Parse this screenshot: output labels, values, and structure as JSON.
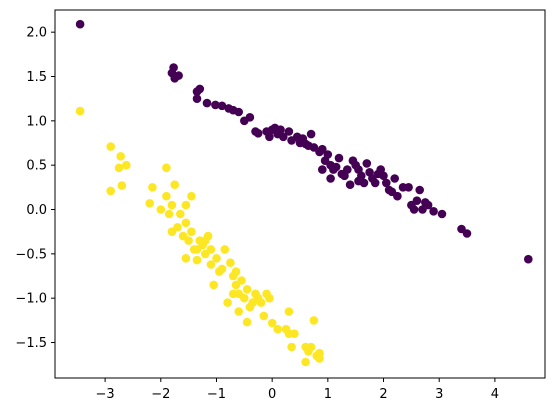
{
  "chart_data": {
    "type": "scatter",
    "title": "",
    "xlabel": "",
    "ylabel": "",
    "xlim": [
      -3.9,
      4.9
    ],
    "ylim": [
      -1.9,
      2.25
    ],
    "grid": false,
    "xticks": [
      -3,
      -2,
      -1,
      0,
      1,
      2,
      3,
      4
    ],
    "yticks": [
      -1.5,
      -1.0,
      -0.5,
      0.0,
      0.5,
      1.0,
      1.5,
      2.0
    ],
    "xtick_labels": [
      "−3",
      "−2",
      "−1",
      "0",
      "1",
      "2",
      "3",
      "4"
    ],
    "ytick_labels": [
      "−1.5",
      "−1.0",
      "−0.5",
      "0.0",
      "0.5",
      "1.0",
      "1.5",
      "2.0"
    ],
    "series": [
      {
        "color": "#440154",
        "points": [
          [
            -3.45,
            2.09
          ],
          [
            -1.8,
            1.54
          ],
          [
            -1.77,
            1.6
          ],
          [
            -1.68,
            1.51
          ],
          [
            -1.75,
            1.48
          ],
          [
            -1.35,
            1.33
          ],
          [
            -1.3,
            1.36
          ],
          [
            -1.35,
            1.25
          ],
          [
            -1.17,
            1.2
          ],
          [
            -1.02,
            1.18
          ],
          [
            -0.9,
            1.17
          ],
          [
            -0.78,
            1.14
          ],
          [
            -0.7,
            1.12
          ],
          [
            -0.6,
            1.1
          ],
          [
            -0.5,
            1.0
          ],
          [
            -0.4,
            1.04
          ],
          [
            -0.3,
            0.88
          ],
          [
            -0.25,
            0.86
          ],
          [
            -0.1,
            0.88
          ],
          [
            0.0,
            0.9
          ],
          [
            0.05,
            0.92
          ],
          [
            0.1,
            0.85
          ],
          [
            0.15,
            0.9
          ],
          [
            0.2,
            0.82
          ],
          [
            0.3,
            0.88
          ],
          [
            0.45,
            0.82
          ],
          [
            0.5,
            0.75
          ],
          [
            0.55,
            0.8
          ],
          [
            0.6,
            0.74
          ],
          [
            0.7,
            0.85
          ],
          [
            0.75,
            0.7
          ],
          [
            0.85,
            0.65
          ],
          [
            0.9,
            0.68
          ],
          [
            0.95,
            0.55
          ],
          [
            1.0,
            0.62
          ],
          [
            1.05,
            0.5
          ],
          [
            1.1,
            0.45
          ],
          [
            1.15,
            0.48
          ],
          [
            1.2,
            0.58
          ],
          [
            1.3,
            0.38
          ],
          [
            1.35,
            0.45
          ],
          [
            1.45,
            0.55
          ],
          [
            1.5,
            0.5
          ],
          [
            1.55,
            0.32
          ],
          [
            1.55,
            0.45
          ],
          [
            1.6,
            0.38
          ],
          [
            1.7,
            0.52
          ],
          [
            1.75,
            0.42
          ],
          [
            1.8,
            0.35
          ],
          [
            1.85,
            0.3
          ],
          [
            1.9,
            0.4
          ],
          [
            1.95,
            0.45
          ],
          [
            2.05,
            0.3
          ],
          [
            2.1,
            0.22
          ],
          [
            2.15,
            0.2
          ],
          [
            2.2,
            0.35
          ],
          [
            2.25,
            0.15
          ],
          [
            2.35,
            0.25
          ],
          [
            2.45,
            0.25
          ],
          [
            2.5,
            0.05
          ],
          [
            2.55,
            0.0
          ],
          [
            2.6,
            0.1
          ],
          [
            2.65,
            0.22
          ],
          [
            2.7,
            0.0
          ],
          [
            2.75,
            0.08
          ],
          [
            2.8,
            0.05
          ],
          [
            2.9,
            -0.02
          ],
          [
            3.05,
            -0.05
          ],
          [
            3.4,
            -0.22
          ],
          [
            3.5,
            -0.27
          ],
          [
            4.6,
            -0.56
          ],
          [
            1.05,
            0.35
          ],
          [
            0.9,
            0.45
          ],
          [
            1.25,
            0.4
          ],
          [
            0.35,
            0.78
          ],
          [
            -0.05,
            0.82
          ],
          [
            1.65,
            0.3
          ],
          [
            2.0,
            0.38
          ],
          [
            1.4,
            0.28
          ],
          [
            0.65,
            0.72
          ]
        ]
      },
      {
        "color": "#fde725",
        "points": [
          [
            -3.45,
            1.11
          ],
          [
            -2.9,
            0.71
          ],
          [
            -2.9,
            0.21
          ],
          [
            -2.72,
            0.6
          ],
          [
            -2.7,
            0.27
          ],
          [
            -2.62,
            0.5
          ],
          [
            -2.75,
            0.47
          ],
          [
            -2.2,
            0.07
          ],
          [
            -2.15,
            0.25
          ],
          [
            -2.0,
            0.0
          ],
          [
            -1.9,
            0.47
          ],
          [
            -1.9,
            0.15
          ],
          [
            -1.85,
            -0.05
          ],
          [
            -1.8,
            0.05
          ],
          [
            -1.75,
            0.28
          ],
          [
            -1.7,
            -0.2
          ],
          [
            -1.65,
            -0.05
          ],
          [
            -1.6,
            -0.3
          ],
          [
            -1.55,
            0.05
          ],
          [
            -1.55,
            -0.55
          ],
          [
            -1.5,
            -0.35
          ],
          [
            -1.45,
            0.15
          ],
          [
            -1.45,
            -0.25
          ],
          [
            -1.4,
            -0.45
          ],
          [
            -1.35,
            -0.57
          ],
          [
            -1.3,
            -0.35
          ],
          [
            -1.25,
            -0.4
          ],
          [
            -1.2,
            -0.5
          ],
          [
            -1.15,
            -0.3
          ],
          [
            -1.1,
            -0.45
          ],
          [
            -1.1,
            -0.62
          ],
          [
            -1.05,
            -0.85
          ],
          [
            -1.0,
            -0.55
          ],
          [
            -0.9,
            -0.67
          ],
          [
            -0.85,
            -0.45
          ],
          [
            -0.8,
            -1.05
          ],
          [
            -0.75,
            -0.6
          ],
          [
            -0.7,
            -0.75
          ],
          [
            -0.65,
            -0.85
          ],
          [
            -0.65,
            -0.7
          ],
          [
            -0.6,
            -0.95
          ],
          [
            -0.55,
            -0.8
          ],
          [
            -0.5,
            -1.0
          ],
          [
            -0.45,
            -0.9
          ],
          [
            -0.4,
            -1.1
          ],
          [
            -0.35,
            -1.05
          ],
          [
            -0.3,
            -0.95
          ],
          [
            -0.25,
            -1.0
          ],
          [
            -0.2,
            -1.05
          ],
          [
            -0.15,
            -1.2
          ],
          [
            -0.1,
            -0.95
          ],
          [
            -0.05,
            -1.0
          ],
          [
            0.0,
            -1.28
          ],
          [
            0.1,
            -1.35
          ],
          [
            0.25,
            -1.35
          ],
          [
            0.3,
            -1.4
          ],
          [
            0.35,
            -1.55
          ],
          [
            0.3,
            -1.15
          ],
          [
            0.4,
            -1.4
          ],
          [
            0.6,
            -1.55
          ],
          [
            0.65,
            -1.6
          ],
          [
            0.7,
            -1.55
          ],
          [
            0.75,
            -1.25
          ],
          [
            0.8,
            -1.65
          ],
          [
            0.85,
            -1.62
          ],
          [
            0.85,
            -1.68
          ],
          [
            0.6,
            -1.72
          ],
          [
            -0.6,
            -1.15
          ],
          [
            -0.45,
            -1.27
          ],
          [
            -1.8,
            -0.25
          ],
          [
            -1.35,
            -0.45
          ],
          [
            -1.2,
            -0.35
          ],
          [
            -0.95,
            -0.7
          ],
          [
            -0.7,
            -0.95
          ],
          [
            -1.55,
            -0.15
          ]
        ]
      }
    ]
  }
}
